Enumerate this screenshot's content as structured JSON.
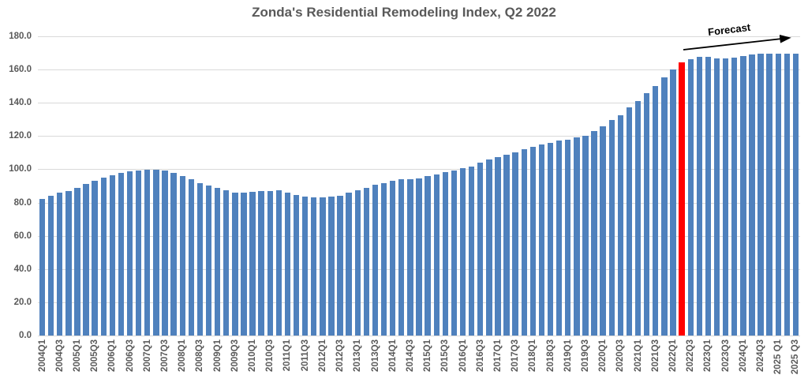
{
  "title": "Zonda's Residential Remodeling Index, Q2 2022",
  "annotation": {
    "label": "Forecast"
  },
  "chart_data": {
    "type": "bar",
    "title": "Zonda's Residential Remodeling Index, Q2 2022",
    "quarters": [
      "2004Q1",
      "2004Q2",
      "2004Q3",
      "2004Q4",
      "2005Q1",
      "2005Q2",
      "2005Q3",
      "2005Q4",
      "2006Q1",
      "2006Q2",
      "2006Q3",
      "2006Q4",
      "2007Q1",
      "2007Q2",
      "2007Q3",
      "2007Q4",
      "2008Q1",
      "2008Q2",
      "2008Q3",
      "2008Q4",
      "2009Q1",
      "2009Q2",
      "2009Q3",
      "2009Q4",
      "2010Q1",
      "2010Q2",
      "2010Q3",
      "2010Q4",
      "2011Q1",
      "2011Q2",
      "2011Q3",
      "2011Q4",
      "2012Q1",
      "2012Q2",
      "2012Q3",
      "2012Q4",
      "2013Q1",
      "2013Q2",
      "2013Q3",
      "2013Q4",
      "2014Q1",
      "2014Q2",
      "2014Q3",
      "2014Q4",
      "2015Q1",
      "2015Q2",
      "2015Q3",
      "2015Q4",
      "2016Q1",
      "2016Q2",
      "2016Q3",
      "2016Q4",
      "2017Q1",
      "2017Q2",
      "2017Q3",
      "2017Q4",
      "2018Q1",
      "2018Q2",
      "2018Q3",
      "2018Q4",
      "2019Q1",
      "2019Q2",
      "2019Q3",
      "2019Q4",
      "2020Q1",
      "2020Q2",
      "2020Q3",
      "2020Q4",
      "2021Q1",
      "2021Q2",
      "2021Q3",
      "2021Q4",
      "2022Q1",
      "2022Q2",
      "2022Q3",
      "2022Q4",
      "2023Q1",
      "2023Q2",
      "2023Q3",
      "2023Q4",
      "2024Q1",
      "2024Q2",
      "2024Q3",
      "2024Q4",
      "2025Q1",
      "2025Q2",
      "2025Q3"
    ],
    "values": [
      82.3,
      84.2,
      85.8,
      87.1,
      89.0,
      91.0,
      92.9,
      95.0,
      96.6,
      97.7,
      98.6,
      99.2,
      99.7,
      99.7,
      99.2,
      97.8,
      96.1,
      93.9,
      91.8,
      90.2,
      88.7,
      87.2,
      86.0,
      85.8,
      86.3,
      86.8,
      87.1,
      87.4,
      85.8,
      84.7,
      83.6,
      83.0,
      83.0,
      83.5,
      84.2,
      85.8,
      87.4,
      89.0,
      90.6,
      91.8,
      92.9,
      93.9,
      94.2,
      94.7,
      95.8,
      96.9,
      98.1,
      99.2,
      100.5,
      101.8,
      104.0,
      106.0,
      107.3,
      108.9,
      110.3,
      111.9,
      113.5,
      114.8,
      116.0,
      117.2,
      117.9,
      119.0,
      120.3,
      123.0,
      125.8,
      129.8,
      132.6,
      137.2,
      141.3,
      145.6,
      150.1,
      155.4,
      159.9,
      164.5,
      166.4,
      167.6,
      167.6,
      166.8,
      166.7,
      167.3,
      168.0,
      168.9,
      169.4,
      169.4,
      169.4,
      169.4,
      169.8
    ],
    "highlight_index": 73,
    "highlight_quarter": "2022Q2",
    "forecast_annotation": "Forecast",
    "forecast_start_quarter": "2022Q3",
    "x_tick_labels": [
      "2004Q1",
      "2004Q3",
      "2005Q1",
      "2005Q3",
      "2006Q1",
      "2006Q3",
      "2007Q1",
      "2007Q3",
      "2008Q1",
      "2008Q3",
      "2009Q1",
      "2009Q3",
      "2010Q1",
      "2010Q3",
      "2011Q1",
      "2011Q3",
      "2012Q1",
      "2012Q3",
      "2013Q1",
      "2013Q3",
      "2014Q1",
      "2014Q3",
      "2015Q1",
      "2015Q3",
      "2016Q1",
      "2016Q3",
      "2017Q1",
      "2017Q3",
      "2018Q1",
      "2018Q3",
      "2019Q1",
      "2019Q3",
      "2020Q1",
      "2020Q3",
      "2021Q1",
      "2021Q3",
      "2022Q1",
      "2022Q3",
      "2023Q1",
      "2023Q3",
      "2024Q1",
      "2024Q3",
      "2025 Q1",
      "2025 Q3"
    ],
    "y_tick_labels": [
      "180.0",
      "160.0",
      "140.0",
      "120.0",
      "100.0",
      "80.0",
      "60.0",
      "40.0",
      "20.0",
      "0.0"
    ],
    "ylim": [
      0,
      180
    ],
    "ytick_step": 20,
    "legend": "none",
    "grid": "horizontal",
    "colors": {
      "bar": "#4F81BD",
      "highlight": "#FF0000",
      "grid": "#D9D9D9",
      "text": "#595959",
      "annotation": "#000000"
    }
  }
}
